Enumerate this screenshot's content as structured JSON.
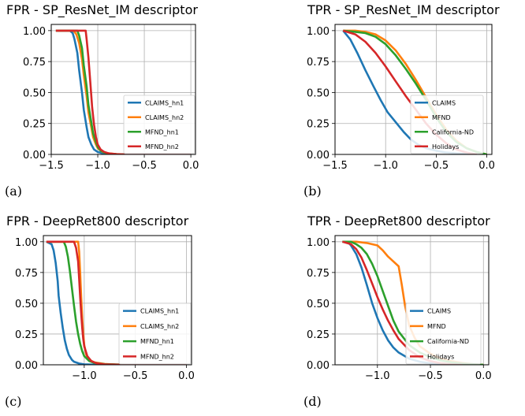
{
  "chart_data": [
    {
      "type": "line",
      "caption": "(a)",
      "title": "FPR - SP_ResNet_IM descriptor",
      "xlim": [
        -1.5,
        0.05
      ],
      "ylim": [
        0,
        1.05
      ],
      "xticks": [
        "−1.5",
        "−1.0",
        "−0.5",
        "0.0"
      ],
      "yticks": [
        "0.00",
        "0.25",
        "0.50",
        "0.75",
        "1.00"
      ],
      "grid": true,
      "legend_position": "center-right",
      "series": [
        {
          "name": "CLAIMS_hn1",
          "color": "#1f77b4",
          "x": [
            -1.45,
            -1.3,
            -1.27,
            -1.25,
            -1.22,
            -1.2,
            -1.17,
            -1.15,
            -1.12,
            -1.1,
            -1.07,
            -1.04,
            -1.0,
            -0.95,
            -0.85,
            -0.7,
            0.0
          ],
          "y": [
            1.0,
            1.0,
            0.98,
            0.93,
            0.82,
            0.68,
            0.5,
            0.36,
            0.22,
            0.14,
            0.08,
            0.04,
            0.02,
            0.01,
            0.003,
            0.0,
            0.0
          ]
        },
        {
          "name": "CLAIMS_hn2",
          "color": "#ff7f0e",
          "x": [
            -1.45,
            -1.26,
            -1.23,
            -1.2,
            -1.17,
            -1.15,
            -1.12,
            -1.1,
            -1.07,
            -1.05,
            -1.02,
            -1.0,
            -0.95,
            -0.9,
            -0.8,
            -0.7,
            0.0
          ],
          "y": [
            1.0,
            1.0,
            0.97,
            0.9,
            0.77,
            0.64,
            0.47,
            0.34,
            0.22,
            0.14,
            0.08,
            0.05,
            0.02,
            0.01,
            0.003,
            0.0,
            0.0
          ]
        },
        {
          "name": "MFND_hn1",
          "color": "#2ca02c",
          "x": [
            -1.45,
            -1.22,
            -1.2,
            -1.17,
            -1.15,
            -1.12,
            -1.1,
            -1.07,
            -1.05,
            -1.02,
            -1.0,
            -0.97,
            -0.93,
            -0.88,
            -0.8,
            -0.7,
            0.0
          ],
          "y": [
            1.0,
            1.0,
            0.96,
            0.86,
            0.72,
            0.55,
            0.4,
            0.26,
            0.17,
            0.1,
            0.06,
            0.03,
            0.015,
            0.006,
            0.002,
            0.0,
            0.0
          ]
        },
        {
          "name": "MFND_hn2",
          "color": "#d62728",
          "x": [
            -1.45,
            -1.13,
            -1.12,
            -1.1,
            -1.08,
            -1.06,
            -1.04,
            -1.02,
            -1.0,
            -0.97,
            -0.93,
            -0.88,
            -0.8,
            -0.7,
            0.0
          ],
          "y": [
            1.0,
            1.0,
            0.93,
            0.78,
            0.58,
            0.38,
            0.24,
            0.14,
            0.08,
            0.04,
            0.02,
            0.008,
            0.002,
            0.0,
            0.0
          ]
        }
      ]
    },
    {
      "type": "line",
      "caption": "(b)",
      "title": "TPR - SP_ResNet_IM descriptor",
      "xlim": [
        -1.5,
        0.05
      ],
      "ylim": [
        0,
        1.05
      ],
      "xticks": [
        "−1.5",
        "−1.0",
        "−0.5",
        "0.0"
      ],
      "yticks": [
        "0.00",
        "0.25",
        "0.50",
        "0.75",
        "1.00"
      ],
      "grid": true,
      "legend_position": "center-right",
      "series": [
        {
          "name": "CLAIMS",
          "color": "#1f77b4",
          "x": [
            -1.42,
            -1.35,
            -1.28,
            -1.2,
            -1.12,
            -1.05,
            -0.98,
            -0.9,
            -0.82,
            -0.75,
            -0.68,
            -0.6,
            -0.5,
            -0.4,
            -0.3,
            -0.2,
            -0.1
          ],
          "y": [
            1.0,
            0.93,
            0.82,
            0.68,
            0.55,
            0.44,
            0.34,
            0.26,
            0.18,
            0.12,
            0.08,
            0.05,
            0.03,
            0.015,
            0.008,
            0.004,
            0.0
          ]
        },
        {
          "name": "MFND",
          "color": "#ff7f0e",
          "x": [
            -1.42,
            -1.3,
            -1.2,
            -1.1,
            -1.0,
            -0.9,
            -0.8,
            -0.7,
            -0.6,
            -0.5,
            -0.4,
            -0.3,
            -0.2,
            -0.1,
            0.0
          ],
          "y": [
            1.0,
            1.0,
            0.99,
            0.97,
            0.92,
            0.84,
            0.73,
            0.6,
            0.46,
            0.32,
            0.2,
            0.11,
            0.05,
            0.02,
            0.0
          ]
        },
        {
          "name": "California-ND",
          "color": "#2ca02c",
          "x": [
            -1.42,
            -1.3,
            -1.2,
            -1.1,
            -1.0,
            -0.9,
            -0.8,
            -0.7,
            -0.6,
            -0.5,
            -0.4,
            -0.3,
            -0.2,
            -0.1,
            0.0
          ],
          "y": [
            1.0,
            0.99,
            0.98,
            0.95,
            0.89,
            0.8,
            0.69,
            0.57,
            0.44,
            0.3,
            0.18,
            0.1,
            0.05,
            0.02,
            0.0
          ]
        },
        {
          "name": "Holidays",
          "color": "#d62728",
          "x": [
            -1.42,
            -1.3,
            -1.2,
            -1.1,
            -1.0,
            -0.9,
            -0.8,
            -0.7,
            -0.6,
            -0.5,
            -0.4,
            -0.3,
            -0.2,
            -0.1
          ],
          "y": [
            1.0,
            0.97,
            0.91,
            0.82,
            0.71,
            0.59,
            0.47,
            0.36,
            0.25,
            0.16,
            0.09,
            0.04,
            0.015,
            0.0
          ]
        }
      ]
    },
    {
      "type": "line",
      "caption": "(c)",
      "title": "FPR - DeepRet800 descriptor",
      "xlim": [
        -1.4,
        0.05
      ],
      "ylim": [
        0,
        1.05
      ],
      "xticks": [
        "−1.0",
        "−0.5",
        "0.0"
      ],
      "yticks": [
        "0.00",
        "0.25",
        "0.50",
        "0.75",
        "1.00"
      ],
      "grid": true,
      "legend_position": "center-right",
      "series": [
        {
          "name": "CLAIMS_hn1",
          "color": "#1f77b4",
          "x": [
            -1.37,
            -1.32,
            -1.3,
            -1.28,
            -1.26,
            -1.25,
            -1.23,
            -1.21,
            -1.19,
            -1.17,
            -1.15,
            -1.12,
            -1.1,
            -1.05,
            -1.0,
            -0.9,
            -0.8,
            0.0
          ],
          "y": [
            1.0,
            0.98,
            0.93,
            0.83,
            0.68,
            0.56,
            0.42,
            0.3,
            0.2,
            0.13,
            0.08,
            0.04,
            0.025,
            0.01,
            0.004,
            0.001,
            0.0,
            0.0
          ]
        },
        {
          "name": "CLAIMS_hn2",
          "color": "#ff7f0e",
          "x": [
            -1.37,
            -1.06,
            -1.05,
            -1.04,
            -1.03,
            -1.02,
            -1.01,
            -1.0,
            -0.98,
            -0.95,
            -0.9,
            -0.8,
            -0.7,
            -0.5,
            0.0
          ],
          "y": [
            1.0,
            1.0,
            0.92,
            0.75,
            0.55,
            0.38,
            0.25,
            0.16,
            0.08,
            0.04,
            0.02,
            0.007,
            0.002,
            0.0,
            0.0
          ]
        },
        {
          "name": "MFND_hn1",
          "color": "#2ca02c",
          "x": [
            -1.37,
            -1.2,
            -1.18,
            -1.16,
            -1.14,
            -1.12,
            -1.1,
            -1.08,
            -1.06,
            -1.04,
            -1.02,
            -1.0,
            -0.95,
            -0.9,
            -0.8,
            -0.6,
            0.0
          ],
          "y": [
            1.0,
            1.0,
            0.96,
            0.88,
            0.76,
            0.62,
            0.48,
            0.35,
            0.25,
            0.17,
            0.11,
            0.07,
            0.03,
            0.015,
            0.005,
            0.001,
            0.0
          ]
        },
        {
          "name": "MFND_hn2",
          "color": "#d62728",
          "x": [
            -1.37,
            -1.1,
            -1.08,
            -1.06,
            -1.05,
            -1.04,
            -1.03,
            -1.02,
            -1.01,
            -1.0,
            -0.97,
            -0.93,
            -0.88,
            -0.8,
            -0.6,
            0.0
          ],
          "y": [
            1.0,
            1.0,
            0.95,
            0.84,
            0.7,
            0.55,
            0.42,
            0.3,
            0.21,
            0.15,
            0.07,
            0.03,
            0.012,
            0.004,
            0.0,
            0.0
          ]
        }
      ]
    },
    {
      "type": "line",
      "caption": "(d)",
      "title": "TPR - DeepRet800 descriptor",
      "xlim": [
        -1.4,
        0.05
      ],
      "ylim": [
        0,
        1.05
      ],
      "xticks": [
        "−1.0",
        "−0.5",
        "0.0"
      ],
      "yticks": [
        "0.00",
        "0.25",
        "0.50",
        "0.75",
        "1.00"
      ],
      "grid": true,
      "legend_position": "center-right",
      "series": [
        {
          "name": "CLAIMS",
          "color": "#1f77b4",
          "x": [
            -1.33,
            -1.28,
            -1.25,
            -1.2,
            -1.15,
            -1.1,
            -1.05,
            -1.0,
            -0.95,
            -0.9,
            -0.85,
            -0.8,
            -0.7,
            -0.6,
            -0.5,
            -0.4,
            -0.2
          ],
          "y": [
            1.0,
            1.0,
            0.97,
            0.9,
            0.79,
            0.65,
            0.5,
            0.38,
            0.28,
            0.2,
            0.14,
            0.1,
            0.05,
            0.025,
            0.012,
            0.005,
            0.0
          ]
        },
        {
          "name": "MFND",
          "color": "#ff7f0e",
          "x": [
            -1.33,
            -1.2,
            -1.1,
            -1.0,
            -0.95,
            -0.9,
            -0.85,
            -0.8,
            -0.77,
            -0.74,
            -0.7,
            -0.65,
            -0.6,
            -0.5,
            -0.4,
            -0.3,
            -0.2,
            -0.1,
            0.0
          ],
          "y": [
            1.0,
            1.0,
            0.99,
            0.97,
            0.93,
            0.88,
            0.84,
            0.8,
            0.65,
            0.48,
            0.32,
            0.22,
            0.15,
            0.09,
            0.05,
            0.03,
            0.015,
            0.005,
            0.0
          ]
        },
        {
          "name": "California-ND",
          "color": "#2ca02c",
          "x": [
            -1.33,
            -1.25,
            -1.2,
            -1.15,
            -1.1,
            -1.05,
            -1.0,
            -0.95,
            -0.9,
            -0.85,
            -0.8,
            -0.7,
            -0.6,
            -0.5,
            -0.4,
            -0.3,
            -0.2,
            -0.1,
            0.0
          ],
          "y": [
            1.0,
            1.0,
            0.98,
            0.95,
            0.9,
            0.82,
            0.72,
            0.6,
            0.48,
            0.36,
            0.27,
            0.16,
            0.1,
            0.06,
            0.035,
            0.02,
            0.01,
            0.005,
            0.0
          ]
        },
        {
          "name": "Holidays",
          "color": "#d62728",
          "x": [
            -1.33,
            -1.25,
            -1.2,
            -1.15,
            -1.1,
            -1.05,
            -1.0,
            -0.95,
            -0.9,
            -0.85,
            -0.8,
            -0.7,
            -0.6,
            -0.5,
            -0.4,
            -0.3,
            -0.2
          ],
          "y": [
            1.0,
            0.98,
            0.94,
            0.87,
            0.77,
            0.66,
            0.55,
            0.45,
            0.36,
            0.28,
            0.21,
            0.12,
            0.06,
            0.03,
            0.012,
            0.004,
            0.0
          ]
        }
      ]
    }
  ]
}
